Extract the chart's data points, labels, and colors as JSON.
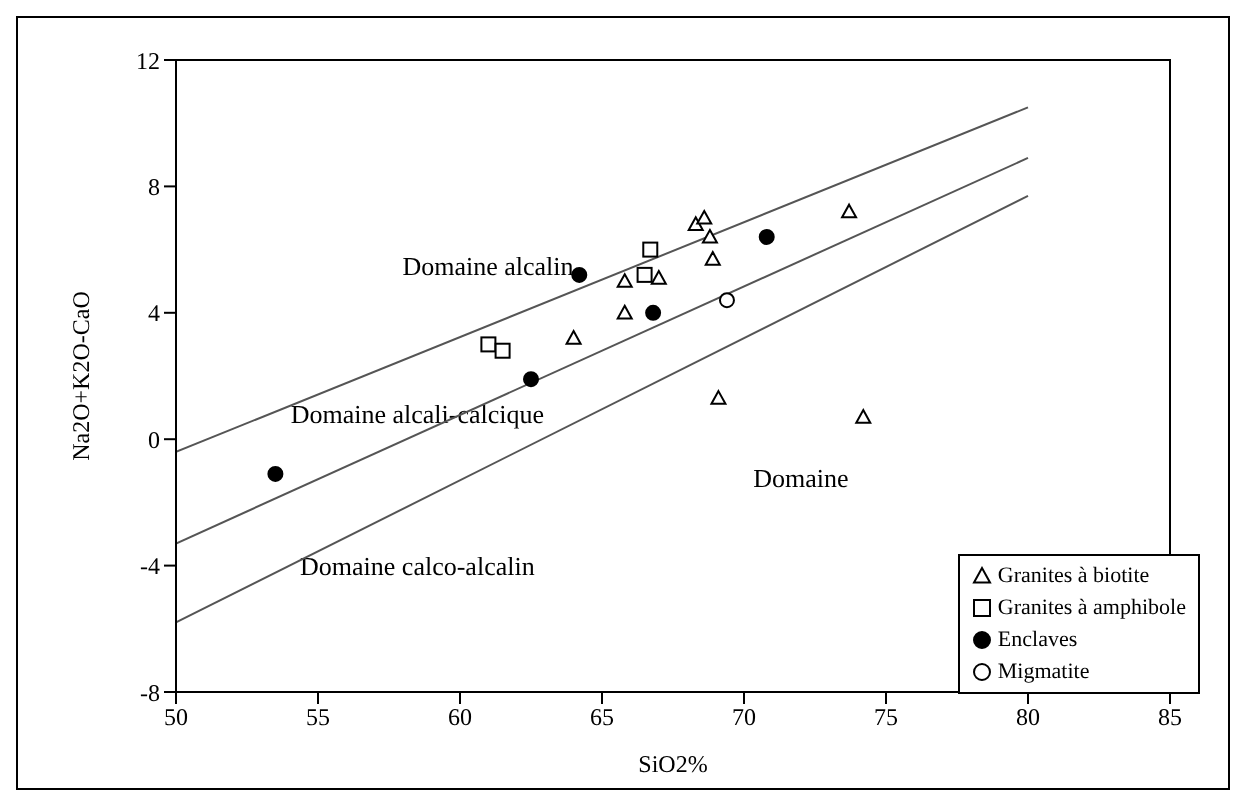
{
  "chart_data": {
    "type": "scatter",
    "xlabel": "SiO2%",
    "ylabel": "Na2O+K2O-CaO",
    "xlim": [
      50,
      85
    ],
    "ylim": [
      -8,
      12
    ],
    "xticks": [
      50,
      55,
      60,
      65,
      70,
      75,
      80,
      85
    ],
    "yticks": [
      -8,
      -4,
      0,
      4,
      8,
      12
    ],
    "grid": false,
    "legend": "bottom right",
    "series": [
      {
        "name": "Granites à biotite",
        "marker": "triangle",
        "color": "#ffffff",
        "x": [
          64,
          65.8,
          65.8,
          67,
          68.3,
          68.6,
          68.8,
          68.9,
          69.1,
          73.7,
          74.2
        ],
        "values": [
          3.2,
          4.0,
          5.0,
          5.1,
          6.8,
          7.0,
          6.4,
          5.7,
          1.3,
          7.2,
          0.7
        ]
      },
      {
        "name": "Granites à amphibole",
        "marker": "square",
        "color": "#ffffff",
        "x": [
          61,
          61.5,
          66.5,
          66.7
        ],
        "values": [
          3.0,
          2.8,
          5.2,
          6.0
        ]
      },
      {
        "name": "Enclaves",
        "marker": "circle",
        "color": "#000000",
        "x": [
          53.5,
          62.5,
          64.2,
          66.8,
          70.8
        ],
        "values": [
          -1.1,
          1.9,
          5.2,
          4.0,
          6.4
        ]
      },
      {
        "name": "Migmatite",
        "marker": "circle",
        "color": "#ffffff",
        "x": [
          69.4
        ],
        "values": [
          4.4
        ]
      },
      {
        "type": "line",
        "color": "#555555",
        "x": [
          50,
          80
        ],
        "values": [
          -0.4,
          10.5
        ]
      },
      {
        "type": "line",
        "color": "#555555",
        "x": [
          50,
          80
        ],
        "values": [
          -3.3,
          8.9
        ]
      },
      {
        "type": "line",
        "color": "#555555",
        "x": [
          50,
          80
        ],
        "values": [
          -5.8,
          7.7
        ]
      }
    ],
    "annotations": [
      "Domaine alcalin",
      "Domaine alcali-calcique",
      "Domaine calco-alcalin",
      "Domaine"
    ]
  }
}
